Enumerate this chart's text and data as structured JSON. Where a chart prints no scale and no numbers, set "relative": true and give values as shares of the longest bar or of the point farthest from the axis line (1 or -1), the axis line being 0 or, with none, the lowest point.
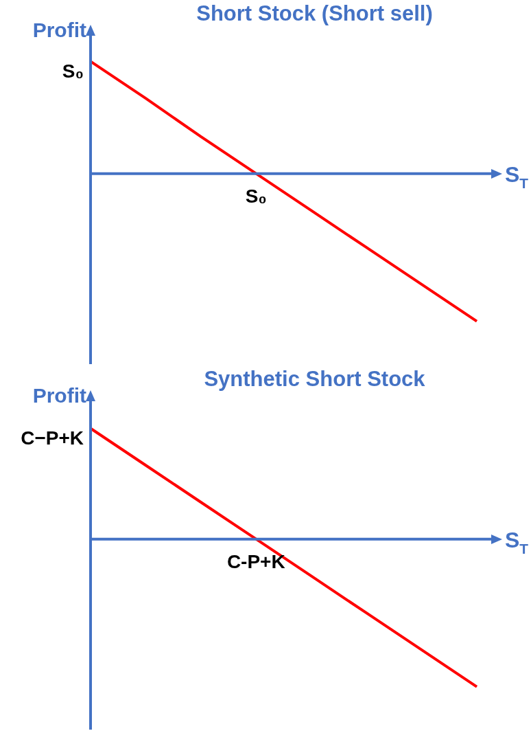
{
  "chart_data": [
    {
      "type": "line",
      "title": "Short Stock (Short sell)",
      "ylabel": "Profit",
      "xlabel": "S$_{T}$",
      "relative": true,
      "categories": [
        null,
        null,
        null,
        null,
        null,
        null,
        null,
        null
      ],
      "series": [
        {
          "color": "#ff0000",
          "values": [
            0.76,
            0.51,
            0.25,
            0,
            -0.25,
            -0.5,
            -0.75,
            -1
          ]
        }
      ],
      "annotations": [
        "S₀",
        {
          "text": "S₀",
          "y": 0
        }
      ],
      "ref_lines": [
        {
          "axis": "y",
          "value": 0,
          "color": "#4472c4"
        }
      ],
      "marker": "none",
      "legend": false,
      "grid": false
    },
    {
      "type": "line",
      "title": "Synthetic Short Stock",
      "ylabel": "Profit",
      "xlabel": "S$_{T}$",
      "relative": true,
      "categories": [
        null,
        null,
        null,
        null,
        null,
        null,
        null,
        null
      ],
      "series": [
        {
          "color": "#ff0000",
          "values": [
            0.75,
            0.5,
            0.25,
            0,
            -0.25,
            -0.5,
            -0.75,
            -1
          ]
        }
      ],
      "annotations": [
        "C−P+K",
        {
          "text": "C-P+K",
          "y": 0
        }
      ],
      "ref_lines": [
        {
          "axis": "y",
          "value": 0,
          "color": "#4472c4"
        }
      ],
      "marker": "none",
      "legend": false,
      "grid": false
    }
  ]
}
